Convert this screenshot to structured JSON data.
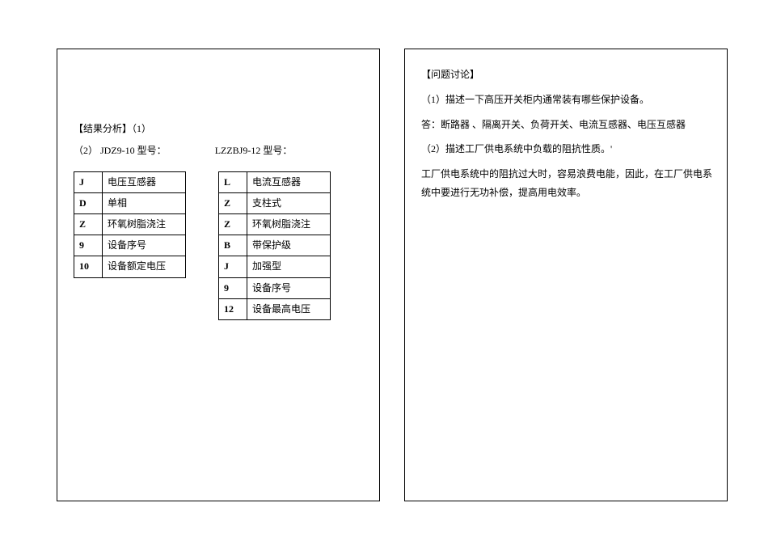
{
  "left": {
    "heading": "【结果分析】（1）",
    "model_prefix": "（2）",
    "model1_label": "JDZ9-10 型号：",
    "model2_label": "LZZBJ9-12 型号：",
    "table1": {
      "rows": [
        {
          "code": "J",
          "desc": "电压互感器"
        },
        {
          "code": "D",
          "desc": "单相"
        },
        {
          "code": "Z",
          "desc": "环氧树脂浇注"
        },
        {
          "code": "9",
          "desc": "设备序号"
        },
        {
          "code": "10",
          "desc": "设备额定电压"
        }
      ]
    },
    "table2": {
      "rows": [
        {
          "code": "L",
          "desc": "电流互感器"
        },
        {
          "code": "Z",
          "desc": "支柱式"
        },
        {
          "code": "Z",
          "desc": "环氧树脂浇注"
        },
        {
          "code": "B",
          "desc": "带保护级"
        },
        {
          "code": "J",
          "desc": "加强型"
        },
        {
          "code": "9",
          "desc": "设备序号"
        },
        {
          "code": "12",
          "desc": "设备最高电压"
        }
      ]
    }
  },
  "right": {
    "title": "【问题讨论】",
    "q1": "（1）描述一下高压开关柜内通常装有哪些保护设备。",
    "a1": "答：断路器 、隔离开关、负荷开关、电流互感器、电压互感器",
    "q2": "（2）描述工厂供电系统中负载的阻抗性质。'",
    "a2": "工厂供电系统中的阻抗过大时，容易浪费电能，因此，在工厂供电系统中要进行无功补偿，提高用电效率。"
  },
  "style": {
    "border_color": "#000000",
    "background": "#ffffff",
    "font_size_pt": 9,
    "font_family": "SimSun"
  }
}
